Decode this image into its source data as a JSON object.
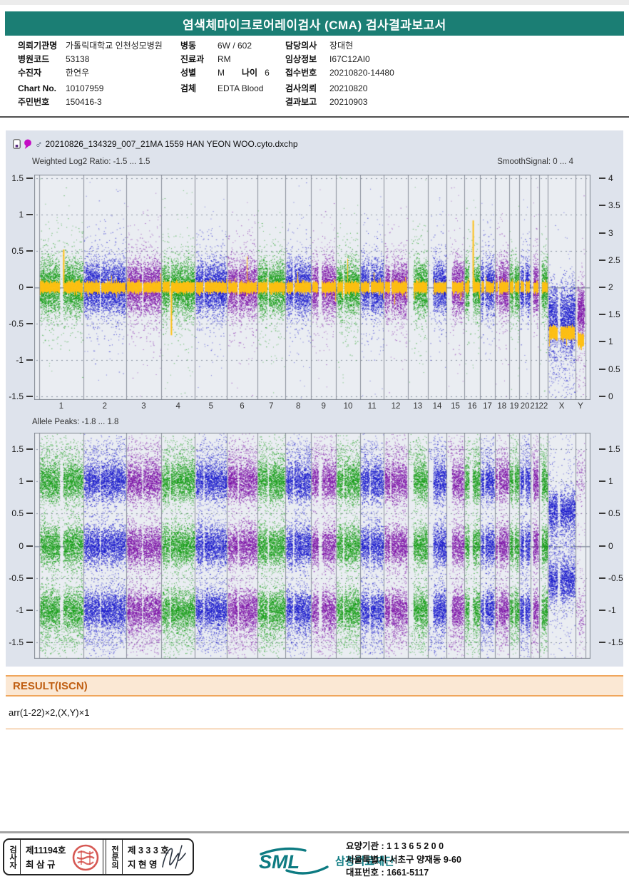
{
  "header": {
    "title": "염색체마이크로어레이검사 (CMA) 검사결과보고서"
  },
  "patient": {
    "col1": [
      {
        "cells": [
          {
            "label": "의뢰기관명",
            "value": "가톨릭대학교 인천성모병원"
          }
        ]
      },
      {
        "cells": [
          {
            "label": "병원코드",
            "value": "53138"
          }
        ]
      },
      {
        "cells": [
          {
            "label": "수진자",
            "value": "한연우"
          }
        ]
      },
      {
        "cells": [
          {
            "label": "Chart No.",
            "value": "10107959"
          }
        ]
      },
      {
        "cells": [
          {
            "label": "주민번호",
            "value": "150416-3"
          }
        ]
      }
    ],
    "col2": [
      {
        "cells": [
          {
            "label": "병동",
            "value": "6W / 602"
          }
        ]
      },
      {
        "cells": [
          {
            "label": "진료과",
            "value": "RM"
          }
        ]
      },
      {
        "cells": [
          {
            "label": "성별",
            "value": "M"
          },
          {
            "label": "나이",
            "value": "6"
          }
        ]
      },
      {
        "cells": [
          {
            "label": "검체",
            "value": "EDTA Blood"
          }
        ]
      }
    ],
    "col3": [
      {
        "cells": [
          {
            "label": "담당의사",
            "value": "장대현"
          }
        ]
      },
      {
        "cells": [
          {
            "label": "임상정보",
            "value": "I67C12AI0"
          }
        ]
      },
      {
        "cells": [
          {
            "label": "접수번호",
            "value": "20210820-14480"
          }
        ]
      },
      {
        "cells": [
          {
            "label": "검사의뢰",
            "value": "20210820"
          }
        ]
      },
      {
        "cells": [
          {
            "label": "결과보고",
            "value": "20210903"
          }
        ]
      }
    ]
  },
  "chart_data": {
    "type": "scatter",
    "title": "20210826_134329_007_21MA 1559 HAN YEON WOO.cyto.dxchp",
    "panels": [
      {
        "name": "weighted_log2_ratio",
        "label": "Weighted Log2 Ratio: -1.5 ... 1.5",
        "right_label": "SmoothSignal: 0 ... 4",
        "ylim": [
          -1.5,
          1.5
        ],
        "right_ylim": [
          0,
          4
        ],
        "left_ticks": [
          1.5,
          1,
          0.5,
          0,
          -0.5,
          -1,
          -1.5
        ],
        "right_ticks": [
          4,
          3.5,
          3,
          2.5,
          2,
          1.5,
          1,
          0.5,
          0
        ],
        "gridlines": [
          1.5,
          1,
          0.5,
          -0.5,
          -1,
          -1.5
        ],
        "log2_center": {
          "autosome": 0,
          "X": -0.4,
          "Y": -0.33
        },
        "smooth_signal_level": {
          "autosome": 0,
          "X": -0.63,
          "Y": -0.73
        },
        "copy_number": {
          "autosome": 2,
          "X": 1,
          "Y": 1
        }
      },
      {
        "name": "allele_peaks",
        "label": "Allele Peaks: -1.8 ... 1.8",
        "ylim": [
          -1.8,
          1.8
        ],
        "left_ticks": [
          1.5,
          1,
          0.5,
          0,
          -0.5,
          -1,
          -1.5
        ],
        "right_ticks": [
          1.5,
          1,
          0.5,
          0,
          -0.5,
          -1,
          -1.5
        ],
        "gridlines": [
          1.5,
          1,
          0.5,
          -0.5,
          -1,
          -1.5
        ],
        "autosome_allele_peaks": [
          1,
          0,
          -1
        ],
        "X_allele_peaks": [
          0.54,
          -0.54
        ],
        "Y_allele_peaks": [
          1.05,
          -1.05
        ]
      }
    ],
    "chromosomes": [
      {
        "name": "1",
        "size": 249,
        "gaps": [
          {
            "f": 0.5,
            "w": 5,
            "spike": 0.52
          }
        ]
      },
      {
        "name": "2",
        "size": 243,
        "gaps": [
          {
            "f": 0.39,
            "w": 2
          }
        ]
      },
      {
        "name": "3",
        "size": 198,
        "gaps": [
          {
            "f": 0.46,
            "w": 2
          }
        ]
      },
      {
        "name": "4",
        "size": 191,
        "gaps": [
          {
            "f": 0.26,
            "w": 2,
            "spike": -0.66
          }
        ]
      },
      {
        "name": "5",
        "size": 181,
        "gaps": [
          {
            "f": 0.27,
            "w": 2
          }
        ]
      },
      {
        "name": "6",
        "size": 171,
        "gaps": [
          {
            "f": 0.36,
            "w": 2
          }
        ]
      },
      {
        "name": "7",
        "size": 159,
        "gaps": [
          {
            "f": 0.38,
            "w": 2
          }
        ]
      },
      {
        "name": "8",
        "size": 146,
        "gaps": [
          {
            "f": 0.31,
            "w": 2
          }
        ]
      },
      {
        "name": "9",
        "size": 141,
        "gaps": [
          {
            "f": 0.35,
            "w": 5
          }
        ]
      },
      {
        "name": "10",
        "size": 136,
        "gaps": [
          {
            "f": 0.3,
            "w": 2
          }
        ]
      },
      {
        "name": "11",
        "size": 135,
        "gaps": [
          {
            "f": 0.4,
            "w": 2
          }
        ]
      },
      {
        "name": "12",
        "size": 134,
        "gaps": [
          {
            "f": 0.27,
            "w": 2
          }
        ]
      },
      {
        "name": "13",
        "size": 114,
        "start": 0.28
      },
      {
        "name": "14",
        "size": 106,
        "start": 0.28
      },
      {
        "name": "15",
        "size": 100,
        "start": 0.3
      },
      {
        "name": "16",
        "size": 90,
        "gaps": [
          {
            "f": 0.41,
            "w": 5,
            "spike": 0.92
          }
        ]
      },
      {
        "name": "17",
        "size": 83,
        "gaps": [
          {
            "f": 0.29,
            "w": 2
          }
        ]
      },
      {
        "name": "18",
        "size": 80,
        "gaps": [
          {
            "f": 0.22,
            "w": 2
          }
        ]
      },
      {
        "name": "19",
        "size": 59,
        "gaps": [
          {
            "f": 0.45,
            "w": 2
          }
        ]
      },
      {
        "name": "20",
        "size": 63,
        "gaps": [
          {
            "f": 0.44,
            "w": 2
          }
        ]
      },
      {
        "name": "21",
        "size": 47,
        "start": 0.3
      },
      {
        "name": "22",
        "size": 51,
        "start": 0.3
      },
      {
        "name": "X",
        "size": 156,
        "gaps": [
          {
            "f": 0.39,
            "w": 4
          }
        ]
      },
      {
        "name": "Y",
        "size": 57,
        "start": 0.18,
        "end": 0.85
      }
    ],
    "colors": {
      "green": "#109c10",
      "blue": "#1414cc",
      "purple": "#7c10a8",
      "signal": "#ffc010",
      "cycle": [
        "green",
        "blue",
        "purple"
      ],
      "plot_bg": "#eaedf2",
      "panel_bg": "#dee3ec",
      "accent_teal": "#1b7e74",
      "accent_orange": "#eda55f"
    }
  },
  "result": {
    "header": "RESULT(ISCN)",
    "value": "arr(1-22)×2,(X,Y)×1"
  },
  "footer": {
    "examiner_role": "검사자",
    "examiner_no": "제11194호",
    "examiner_name": "최 삼 규",
    "specialist_role": "전문의",
    "specialist_no": "제 3 3 3 호",
    "specialist_name": "지 현 영",
    "logo_text": "SML",
    "org_name": "삼광의료재단",
    "address_lines": [
      "요양기관 : 1 1 3 6 5 2 0 0",
      "서울특별시 서초구 양재동 9-60",
      "대표번호 : 1661-5117"
    ]
  }
}
